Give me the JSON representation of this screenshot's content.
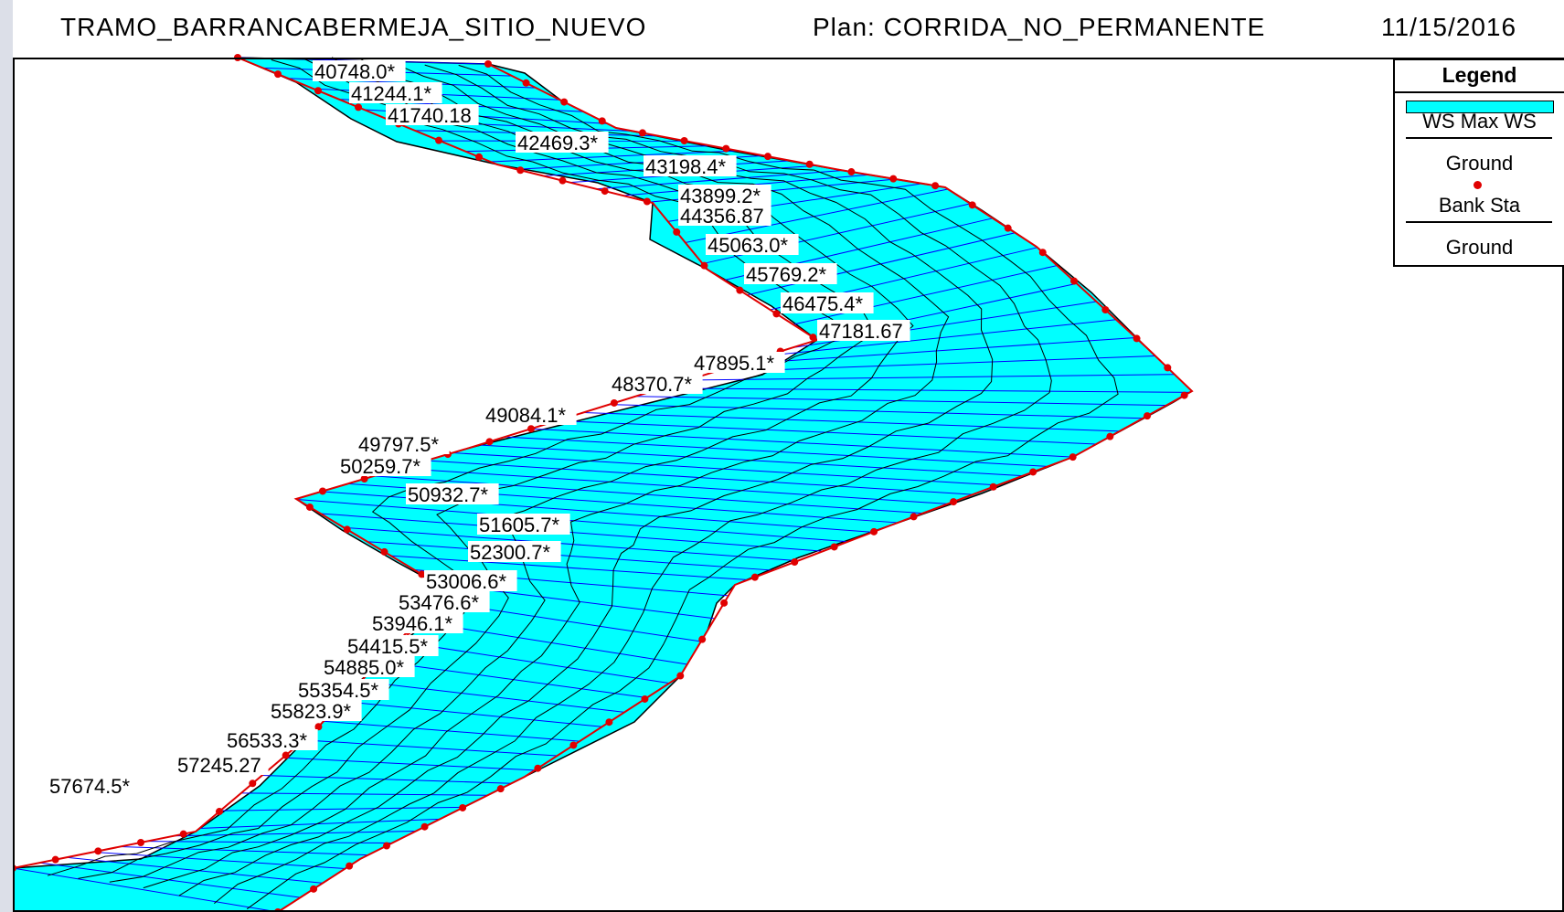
{
  "header": {
    "title": "TRAMO_BARRANCABERMEJA_SITIO_NUEVO",
    "plan": "Plan: CORRIDA_NO_PERMANENTE",
    "date": "11/15/2016"
  },
  "legend": {
    "title": "Legend",
    "items": [
      {
        "label": "WS Max WS",
        "symbol": "fill",
        "color": "#00ffff"
      },
      {
        "label": "Ground",
        "symbol": "line",
        "color": "#000000"
      },
      {
        "label": "Bank Sta",
        "symbol": "dot",
        "color": "#e00000"
      },
      {
        "label": "Ground",
        "symbol": "line",
        "color": "#000000"
      }
    ]
  },
  "colors": {
    "water": "#00ffff",
    "cross_section": "#0000ff",
    "ground": "#000000",
    "bank": "#e00000"
  },
  "stations": [
    "40748.0*",
    "41244.1*",
    "41740.18",
    "42469.3*",
    "43198.4*",
    "43899.2*",
    "44356.87",
    "45063.0*",
    "45769.2*",
    "46475.4*",
    "47181.67",
    "47895.1*",
    "48370.7*",
    "49084.1*",
    "49797.5*",
    "50259.7*",
    "50932.7*",
    "51605.7*",
    "52300.7*",
    "53006.6*",
    "53476.6*",
    "53946.1*",
    "54415.5*",
    "54885.0*",
    "55354.5*",
    "55823.9*",
    "56533.3*",
    "57245.27",
    "57674.5*"
  ]
}
